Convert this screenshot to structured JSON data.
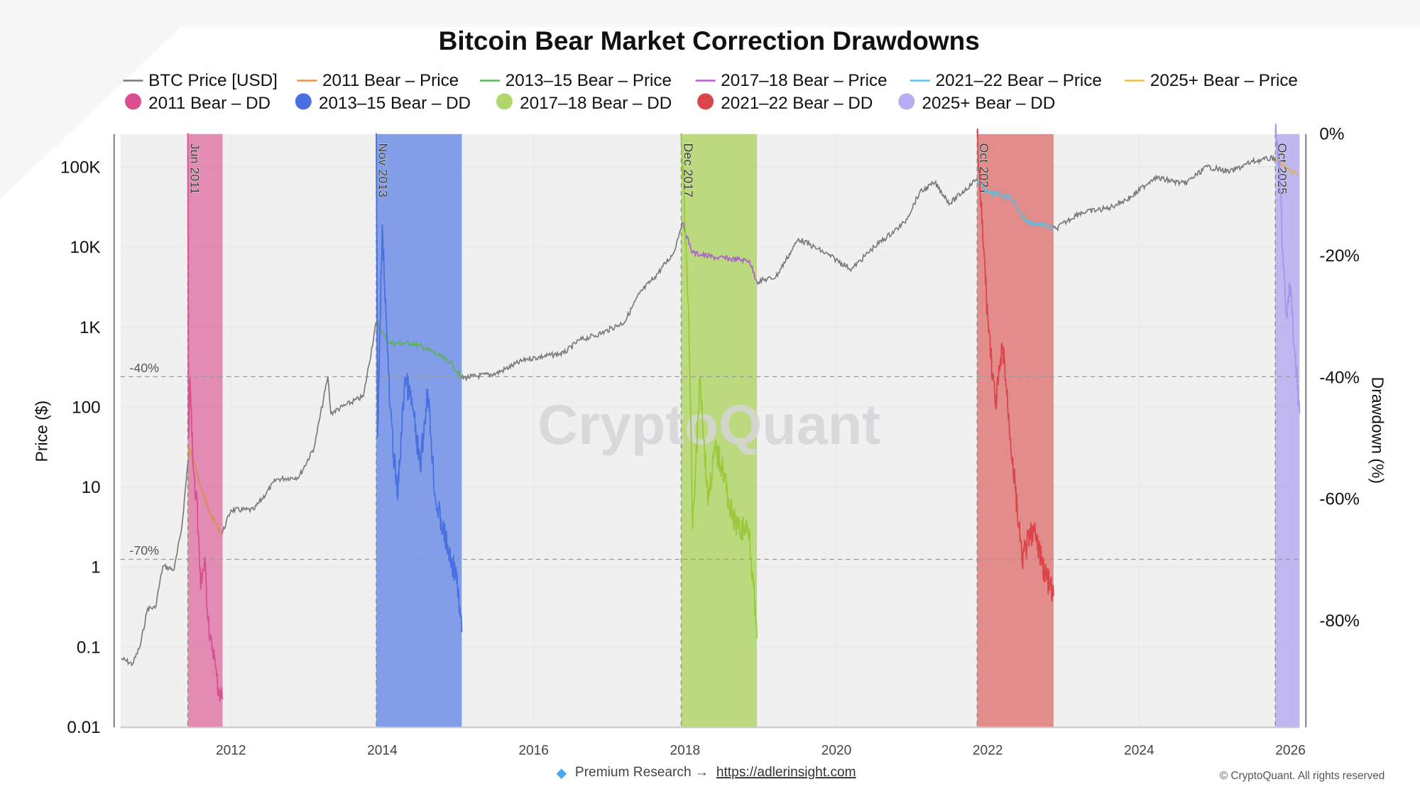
{
  "colors": {
    "price": "#7a7a7a",
    "plot_bg": "#f0f0f0",
    "bands": [
      "#e07aa8",
      "#6f8fe6",
      "#b2d66a",
      "#e07a7a",
      "#b8adf0"
    ],
    "dd_lines": [
      "#d94f8f",
      "#4a6fe0",
      "#9cc83e",
      "#d9464a",
      "#a596ec"
    ],
    "bear_price_lines": [
      "#e8944a",
      "#5cb85c",
      "#b65fd8",
      "#5ec4e8",
      "#edc04a"
    ]
  },
  "chart_data": {
    "type": "line",
    "title": "Bitcoin Bear Market Correction Drawdowns",
    "ylabel": "Price ($)",
    "y2label": "Drawdown (%)",
    "yscale": "log",
    "ylim": [
      0.01,
      200000
    ],
    "y2lim": [
      -100,
      0
    ],
    "xlim": [
      2010.54,
      2026.12
    ],
    "grid": true,
    "legend_position": "top",
    "x_ticks": [
      "2012",
      "2014",
      "2016",
      "2018",
      "2020",
      "2022",
      "2024",
      "2026"
    ],
    "y_ticks": [
      "100K",
      "10K",
      "1K",
      "100",
      "10",
      "1",
      "0.1",
      "0.01"
    ],
    "y2_ticks": [
      "0%",
      "-20%",
      "-40%",
      "-60%",
      "-80%"
    ],
    "reference_lines": [
      {
        "label": "-40%",
        "value": -40
      },
      {
        "label": "-70%",
        "value": -70
      }
    ],
    "legend": [
      "BTC Price [USD]",
      "2011 Bear – Price",
      "2013–15 Bear – Price",
      "2017–18 Bear – Price",
      "2021–22 Bear – Price",
      "2025+ Bear – Price",
      "2011 Bear – DD",
      "2013–15 Bear – DD",
      "2017–18 Bear – DD",
      "2021–22 Bear – DD",
      "2025+ Bear – DD"
    ],
    "price_series": {
      "name": "BTC Price [USD]",
      "points": [
        [
          2010.55,
          0.07
        ],
        [
          2010.7,
          0.06
        ],
        [
          2010.8,
          0.1
        ],
        [
          2010.9,
          0.3
        ],
        [
          2011.0,
          0.3
        ],
        [
          2011.1,
          1
        ],
        [
          2011.25,
          0.9
        ],
        [
          2011.35,
          3
        ],
        [
          2011.45,
          30
        ],
        [
          2011.55,
          15
        ],
        [
          2011.7,
          5
        ],
        [
          2011.88,
          2.5
        ],
        [
          2012.0,
          5
        ],
        [
          2012.3,
          5
        ],
        [
          2012.6,
          12
        ],
        [
          2012.9,
          13
        ],
        [
          2013.1,
          30
        ],
        [
          2013.28,
          230
        ],
        [
          2013.32,
          80
        ],
        [
          2013.5,
          100
        ],
        [
          2013.75,
          130
        ],
        [
          2013.92,
          1100
        ],
        [
          2014.0,
          800
        ],
        [
          2014.1,
          600
        ],
        [
          2014.4,
          600
        ],
        [
          2014.6,
          500
        ],
        [
          2014.9,
          350
        ],
        [
          2015.05,
          220
        ],
        [
          2015.5,
          250
        ],
        [
          2015.9,
          380
        ],
        [
          2016.4,
          450
        ],
        [
          2016.6,
          650
        ],
        [
          2016.9,
          800
        ],
        [
          2017.2,
          1100
        ],
        [
          2017.4,
          2500
        ],
        [
          2017.6,
          4000
        ],
        [
          2017.85,
          8000
        ],
        [
          2017.96,
          19000
        ],
        [
          2018.1,
          8000
        ],
        [
          2018.4,
          7000
        ],
        [
          2018.85,
          6400
        ],
        [
          2018.95,
          3500
        ],
        [
          2019.2,
          4000
        ],
        [
          2019.5,
          12000
        ],
        [
          2019.9,
          7500
        ],
        [
          2020.2,
          5000
        ],
        [
          2020.5,
          9500
        ],
        [
          2020.9,
          19000
        ],
        [
          2021.1,
          45000
        ],
        [
          2021.3,
          60000
        ],
        [
          2021.5,
          33000
        ],
        [
          2021.85,
          66000
        ],
        [
          2022.0,
          45000
        ],
        [
          2022.3,
          40000
        ],
        [
          2022.5,
          20000
        ],
        [
          2022.9,
          16000
        ],
        [
          2023.2,
          25000
        ],
        [
          2023.6,
          29000
        ],
        [
          2023.9,
          40000
        ],
        [
          2024.2,
          70000
        ],
        [
          2024.6,
          58000
        ],
        [
          2024.9,
          95000
        ],
        [
          2025.2,
          82000
        ],
        [
          2025.5,
          110000
        ],
        [
          2025.8,
          123000
        ],
        [
          2025.95,
          90000
        ],
        [
          2026.1,
          75000
        ]
      ]
    },
    "bear_markets": [
      {
        "label": "Jun 2011",
        "name": "2011 Bear – DD",
        "start": 2011.43,
        "end": 2011.89,
        "drawdown": [
          [
            2011.43,
            0
          ],
          [
            2011.44,
            -50
          ],
          [
            2011.46,
            -40
          ],
          [
            2011.5,
            -55
          ],
          [
            2011.55,
            -60
          ],
          [
            2011.6,
            -75
          ],
          [
            2011.65,
            -70
          ],
          [
            2011.7,
            -80
          ],
          [
            2011.75,
            -85
          ],
          [
            2011.8,
            -88
          ],
          [
            2011.85,
            -92
          ],
          [
            2011.89,
            -93
          ]
        ]
      },
      {
        "label": "Nov 2013",
        "name": "2013–15 Bear – DD",
        "start": 2013.92,
        "end": 2015.05,
        "drawdown": [
          [
            2013.92,
            0
          ],
          [
            2013.94,
            -50
          ],
          [
            2014.0,
            -15
          ],
          [
            2014.05,
            -30
          ],
          [
            2014.1,
            -45
          ],
          [
            2014.2,
            -60
          ],
          [
            2014.3,
            -40
          ],
          [
            2014.4,
            -45
          ],
          [
            2014.5,
            -55
          ],
          [
            2014.6,
            -42
          ],
          [
            2014.7,
            -60
          ],
          [
            2014.8,
            -65
          ],
          [
            2014.9,
            -70
          ],
          [
            2014.97,
            -72
          ],
          [
            2015.05,
            -82
          ]
        ]
      },
      {
        "label": "Dec 2017",
        "name": "2017–18 Bear – DD",
        "start": 2017.95,
        "end": 2018.95,
        "drawdown": [
          [
            2017.95,
            0
          ],
          [
            2018.0,
            -15
          ],
          [
            2018.05,
            -30
          ],
          [
            2018.1,
            -65
          ],
          [
            2018.2,
            -40
          ],
          [
            2018.3,
            -60
          ],
          [
            2018.4,
            -52
          ],
          [
            2018.5,
            -55
          ],
          [
            2018.6,
            -62
          ],
          [
            2018.7,
            -65
          ],
          [
            2018.85,
            -65
          ],
          [
            2018.95,
            -83
          ]
        ]
      },
      {
        "label": "Oct 2021",
        "name": "2021–22 Bear – DD",
        "start": 2021.86,
        "end": 2022.87,
        "drawdown": [
          [
            2021.86,
            0
          ],
          [
            2021.9,
            -10
          ],
          [
            2022.0,
            -30
          ],
          [
            2022.1,
            -45
          ],
          [
            2022.2,
            -35
          ],
          [
            2022.3,
            -50
          ],
          [
            2022.45,
            -70
          ],
          [
            2022.6,
            -65
          ],
          [
            2022.75,
            -72
          ],
          [
            2022.87,
            -76
          ]
        ]
      },
      {
        "label": "Oct 2025",
        "name": "2025+ Bear – DD",
        "start": 2025.8,
        "end": 2026.12,
        "drawdown": [
          [
            2025.8,
            0
          ],
          [
            2025.85,
            -5
          ],
          [
            2025.9,
            -20
          ],
          [
            2025.95,
            -30
          ],
          [
            2026.0,
            -25
          ],
          [
            2026.05,
            -35
          ],
          [
            2026.12,
            -46
          ]
        ]
      }
    ]
  },
  "watermark": "CryptoQuant",
  "footer": {
    "premium_text": "Premium Research →",
    "link": "https://adlerinsight.com",
    "copyright": "© CryptoQuant. All rights reserved"
  }
}
